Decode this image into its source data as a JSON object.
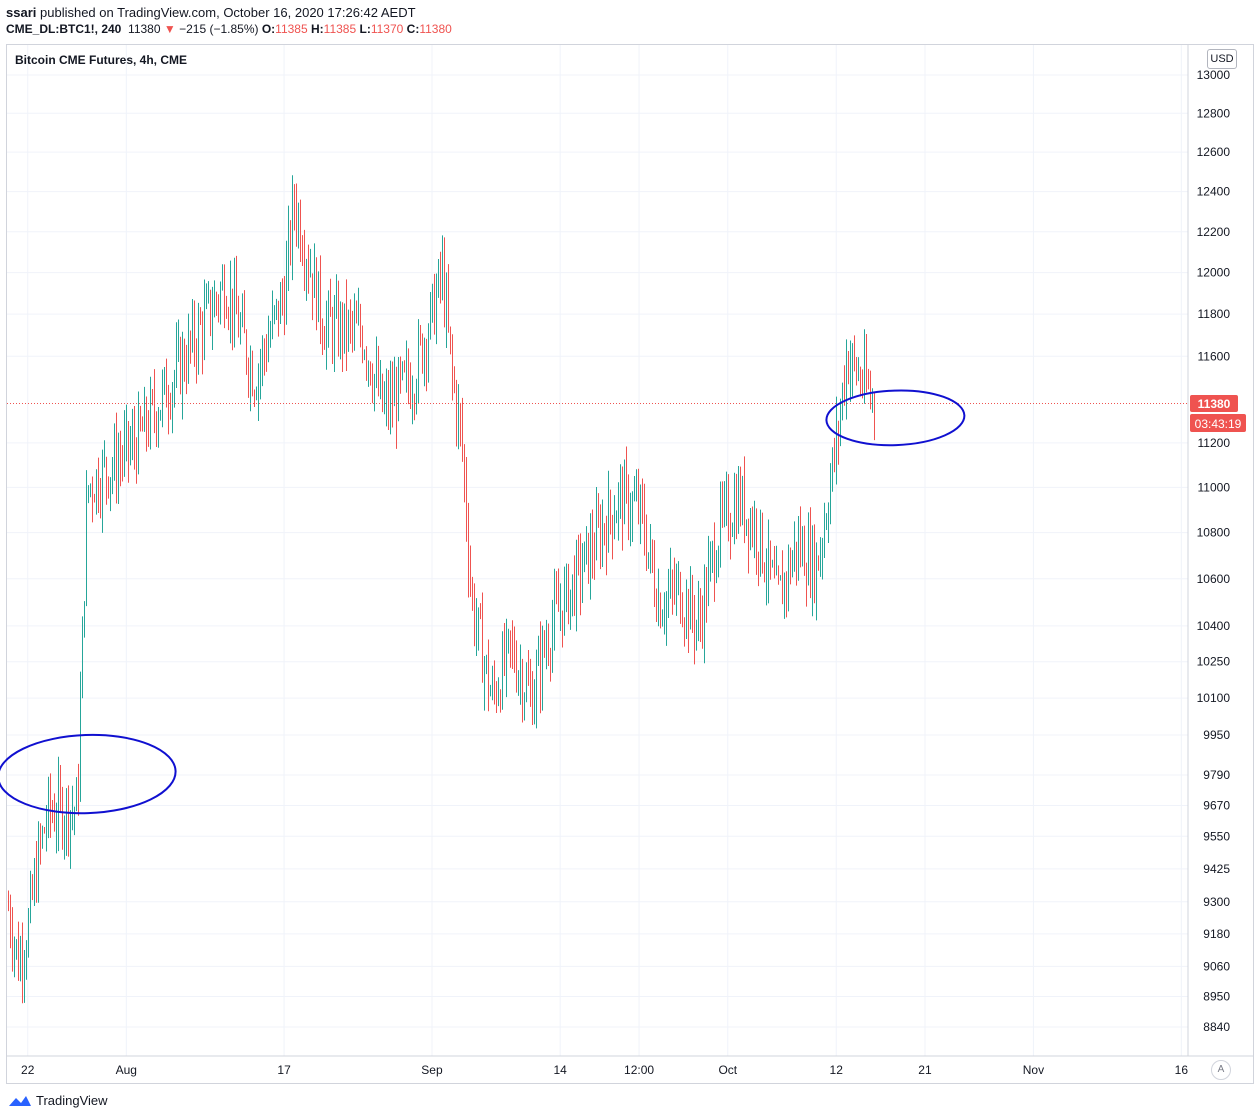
{
  "header": {
    "publisher": "ssari",
    "published_text": "published on TradingView.com, October 16, 2020 17:26:42 AEDT",
    "symbol": "CME_DL:BTC1!, 240",
    "last": "11380",
    "change": "−215 (−1.85%)",
    "open_label": "O:",
    "open": "11385",
    "high_label": "H:",
    "high": "11385",
    "low_label": "L:",
    "low": "11370",
    "close_label": "C:",
    "close": "11380"
  },
  "chart_title": "Bitcoin CME Futures, 4h, CME",
  "currency_button": "USD",
  "auto_button": "A",
  "price_badge": "11380",
  "countdown_badge": "03:43:19",
  "footer_brand": "TradingView",
  "colors": {
    "up": "#26a69a",
    "down": "#ef5350",
    "annotation": "#1010d0",
    "price_line": "#ef5350"
  },
  "chart_data": {
    "type": "candlestick",
    "title": "Bitcoin CME Futures, 4h, CME",
    "y_ticks": [
      13000,
      12800,
      12600,
      12400,
      12200,
      12000,
      11800,
      11600,
      11200,
      11000,
      10800,
      10600,
      10400,
      10250,
      10100,
      9950,
      9790,
      9670,
      9550,
      9425,
      9300,
      9180,
      9060,
      8950,
      8840
    ],
    "x_ticks": [
      "22",
      "Aug",
      "17",
      "Sep",
      "14",
      "12:00",
      "Oct",
      "12",
      "21",
      "Nov",
      "16"
    ],
    "ylim": [
      8750,
      13050
    ],
    "log_scale": true,
    "grid": true,
    "last_price": 11380,
    "ohlc_segments": [
      {
        "start": "Jul 20",
        "end": "Jul 21",
        "from": 9280,
        "to": 9080
      },
      {
        "start": "Jul 21",
        "end": "Jul 22",
        "from": 9080,
        "to": 9200
      },
      {
        "start": "Jul 22",
        "end": "Jul 23",
        "from": 9200,
        "to": 9460
      },
      {
        "start": "Jul 23",
        "end": "Jul 24",
        "from": 9460,
        "to": 9640
      },
      {
        "start": "Jul 24",
        "end": "Jul 27",
        "from": 9640,
        "to": 9660
      },
      {
        "start": "Jul 27",
        "end": "Jul 28",
        "from": 9660,
        "to": 11000
      },
      {
        "start": "Jul 28",
        "end": "Aug 2",
        "from": 11000,
        "to": 11200
      },
      {
        "start": "Aug 2",
        "end": "Aug 7",
        "from": 11200,
        "to": 11600
      },
      {
        "start": "Aug 7",
        "end": "Aug 11",
        "from": 11600,
        "to": 11950
      },
      {
        "start": "Aug 11",
        "end": "Aug 14",
        "from": 11950,
        "to": 11500
      },
      {
        "start": "Aug 14",
        "end": "Aug 17",
        "from": 11500,
        "to": 11900
      },
      {
        "start": "Aug 17",
        "end": "Aug 18",
        "from": 11900,
        "to": 12350
      },
      {
        "start": "Aug 18",
        "end": "Aug 21",
        "from": 12350,
        "to": 11750
      },
      {
        "start": "Aug 21",
        "end": "Aug 25",
        "from": 11750,
        "to": 11700
      },
      {
        "start": "Aug 25",
        "end": "Aug 27",
        "from": 11700,
        "to": 11350
      },
      {
        "start": "Aug 27",
        "end": "Aug 30",
        "from": 11350,
        "to": 11500
      },
      {
        "start": "Aug 30",
        "end": "Sep 1",
        "from": 11500,
        "to": 11800
      },
      {
        "start": "Sep 1",
        "end": "Sep 2",
        "from": 11800,
        "to": 12000
      },
      {
        "start": "Sep 2",
        "end": "Sep 3",
        "from": 12000,
        "to": 11500
      },
      {
        "start": "Sep 3",
        "end": "Sep 4",
        "from": 11500,
        "to": 11200
      },
      {
        "start": "Sep 4",
        "end": "Sep 5",
        "from": 11200,
        "to": 10500
      },
      {
        "start": "Sep 5",
        "end": "Sep 7",
        "from": 10500,
        "to": 10100
      },
      {
        "start": "Sep 7",
        "end": "Sep 9",
        "from": 10100,
        "to": 10300
      },
      {
        "start": "Sep 9",
        "end": "Sep 11",
        "from": 10300,
        "to": 10100
      },
      {
        "start": "Sep 11",
        "end": "Sep 13",
        "from": 10100,
        "to": 10400
      },
      {
        "start": "Sep 13",
        "end": "Sep 15",
        "from": 10400,
        "to": 10550
      },
      {
        "start": "Sep 15",
        "end": "Sep 18",
        "from": 10550,
        "to": 10800
      },
      {
        "start": "Sep 18",
        "end": "Sep 20",
        "from": 10800,
        "to": 10950
      },
      {
        "start": "Sep 20",
        "end": "Sep 22",
        "from": 10950,
        "to": 10900
      },
      {
        "start": "Sep 22",
        "end": "Sep 24",
        "from": 10900,
        "to": 10500
      },
      {
        "start": "Sep 24",
        "end": "Sep 26",
        "from": 10500,
        "to": 10550
      },
      {
        "start": "Sep 26",
        "end": "Sep 28",
        "from": 10550,
        "to": 10400
      },
      {
        "start": "Sep 28",
        "end": "Sep 30",
        "from": 10400,
        "to": 10800
      },
      {
        "start": "Sep 30",
        "end": "Oct 2",
        "from": 10800,
        "to": 10950
      },
      {
        "start": "Oct 2",
        "end": "Oct 4",
        "from": 10950,
        "to": 10800
      },
      {
        "start": "Oct 4",
        "end": "Oct 6",
        "from": 10800,
        "to": 10500
      },
      {
        "start": "Oct 6",
        "end": "Oct 8",
        "from": 10500,
        "to": 10750
      },
      {
        "start": "Oct 8",
        "end": "Oct 10",
        "from": 10750,
        "to": 10650
      },
      {
        "start": "Oct 10",
        "end": "Oct 12",
        "from": 10650,
        "to": 11200
      },
      {
        "start": "Oct 12",
        "end": "Oct 13",
        "from": 11200,
        "to": 11600
      },
      {
        "start": "Oct 13",
        "end": "Oct 15",
        "from": 11600,
        "to": 11450
      },
      {
        "start": "Oct 15",
        "end": "Oct 16",
        "from": 11450,
        "to": 11380
      }
    ],
    "highlighted_levels": [
      {
        "label": "ellipse",
        "price_range": [
          9640,
          9950
        ],
        "date_range": [
          "Jul 19",
          "Aug 6"
        ]
      },
      {
        "label": "ellipse",
        "price_range": [
          11190,
          11440
        ],
        "date_range": [
          "Oct 11",
          "Oct 25"
        ]
      }
    ]
  }
}
